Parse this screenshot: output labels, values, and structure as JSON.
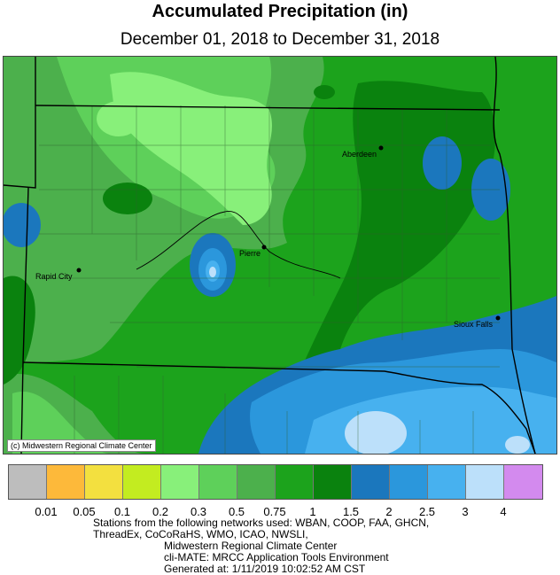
{
  "title": "Accumulated Precipitation (in)",
  "subtitle": "December 01, 2018 to December 31, 2018",
  "credit": "(c) Midwestern Regional Climate Center",
  "cities": [
    {
      "name": "Aberdeen"
    },
    {
      "name": "Pierre"
    },
    {
      "name": "Rapid City"
    },
    {
      "name": "Sioux Falls"
    }
  ],
  "legend": {
    "colors": [
      "#bdbdbd",
      "#fdb93a",
      "#f3e03f",
      "#c3ec20",
      "#88f07a",
      "#5ed05a",
      "#4cb04c",
      "#1ca31c",
      "#0a820e",
      "#1b77bd",
      "#2b97dc",
      "#47b1ef",
      "#bce0fa",
      "#d38aee"
    ],
    "labels": [
      "0.01",
      "0.05",
      "0.1",
      "0.2",
      "0.3",
      "0.5",
      "0.75",
      "1",
      "1.5",
      "2",
      "2.5",
      "3",
      "4"
    ]
  },
  "footer": {
    "line1": "Stations from the following networks used: WBAN, COOP, FAA, GHCN,",
    "line2": "ThreadEx, CoCoRaHS, WMO, ICAO, NWSLI,",
    "line3": "Midwestern Regional Climate Center",
    "line4": "cli-MATE: MRCC Application Tools Environment",
    "line5": "Generated at: 1/11/2019 10:02:52 AM CST"
  }
}
